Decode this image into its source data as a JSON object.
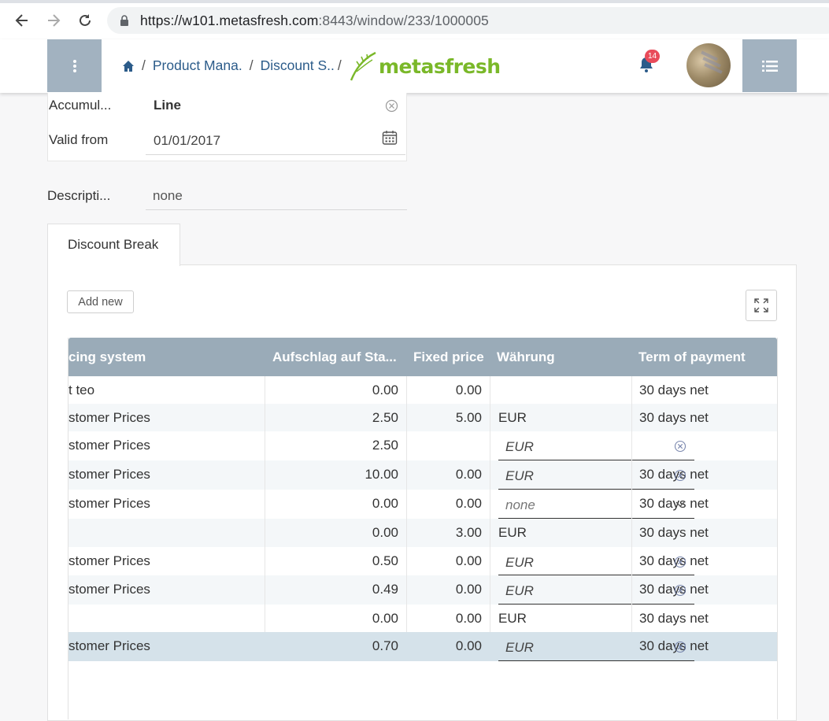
{
  "browser": {
    "url_main": "https://w101.metasfresh.com",
    "url_rest": ":8443/window/233/1000005"
  },
  "header": {
    "breadcrumb": [
      "Product Mana.",
      "Discount S.."
    ],
    "logo_text": "metasfresh",
    "notification_count": "14"
  },
  "form": {
    "accumulation_label": "Accumul...",
    "accumulation_value": "Line",
    "valid_from_label": "Valid from",
    "valid_from_value": "01/01/2017",
    "description_label": "Descripti...",
    "description_value": "none"
  },
  "tab": {
    "label": "Discount Break",
    "add_new_label": "Add new"
  },
  "table": {
    "columns": [
      "cing system",
      "Aufschlag auf Sta...",
      "Fixed price",
      "Währung",
      "Term of payment"
    ],
    "rows": [
      {
        "pricing": "t teo",
        "surcharge": "0.00",
        "fixed": "0.00",
        "currency": "",
        "term": "30 days net"
      },
      {
        "pricing": "stomer Prices",
        "surcharge": "2.50",
        "fixed": "5.00",
        "currency": "EUR",
        "term": "30 days net"
      },
      {
        "pricing": "stomer Prices",
        "surcharge": "2.50",
        "fixed": "",
        "currency": "EUR",
        "term": ""
      },
      {
        "pricing": "stomer Prices",
        "surcharge": "10.00",
        "fixed": "0.00",
        "currency": "EUR",
        "term": "30 days net"
      },
      {
        "pricing": "stomer Prices",
        "surcharge": "0.00",
        "fixed": "0.00",
        "currency": "none",
        "term": "30 days net"
      },
      {
        "pricing": "",
        "surcharge": "0.00",
        "fixed": "3.00",
        "currency": "EUR",
        "term": "30 days net"
      },
      {
        "pricing": "stomer Prices",
        "surcharge": "0.50",
        "fixed": "0.00",
        "currency": "EUR",
        "term": "30 days net"
      },
      {
        "pricing": "stomer Prices",
        "surcharge": "0.49",
        "fixed": "0.00",
        "currency": "EUR",
        "term": "30 days net"
      },
      {
        "pricing": "",
        "surcharge": "0.00",
        "fixed": "0.00",
        "currency": "EUR",
        "term": "30 days net"
      },
      {
        "pricing": "stomer Prices",
        "surcharge": "0.70",
        "fixed": "0.00",
        "currency": "EUR",
        "term": "30 days net"
      }
    ]
  }
}
